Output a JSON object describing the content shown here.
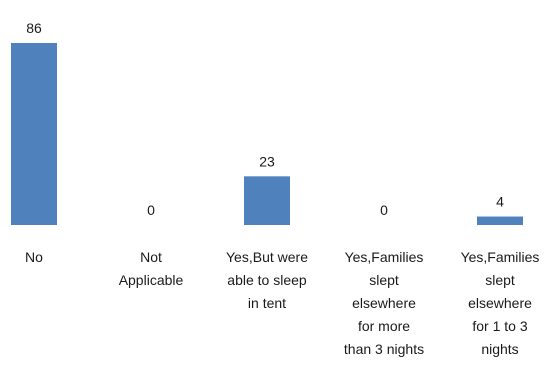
{
  "chart_data": {
    "type": "bar",
    "categories": [
      [
        "No"
      ],
      [
        "Not",
        "Applicable"
      ],
      [
        "Yes,But were",
        "able to sleep",
        "in tent"
      ],
      [
        "Yes,Families",
        "slept",
        "elsewhere",
        "for more",
        "than 3 nights"
      ],
      [
        "Yes,Families",
        "slept",
        "elsewhere",
        "for 1 to 3",
        "nights"
      ]
    ],
    "values": [
      86,
      0,
      23,
      0,
      4
    ],
    "ylim": [
      0,
      86
    ],
    "bar_color": "#4f81bd",
    "grid": false,
    "legend": "none"
  }
}
